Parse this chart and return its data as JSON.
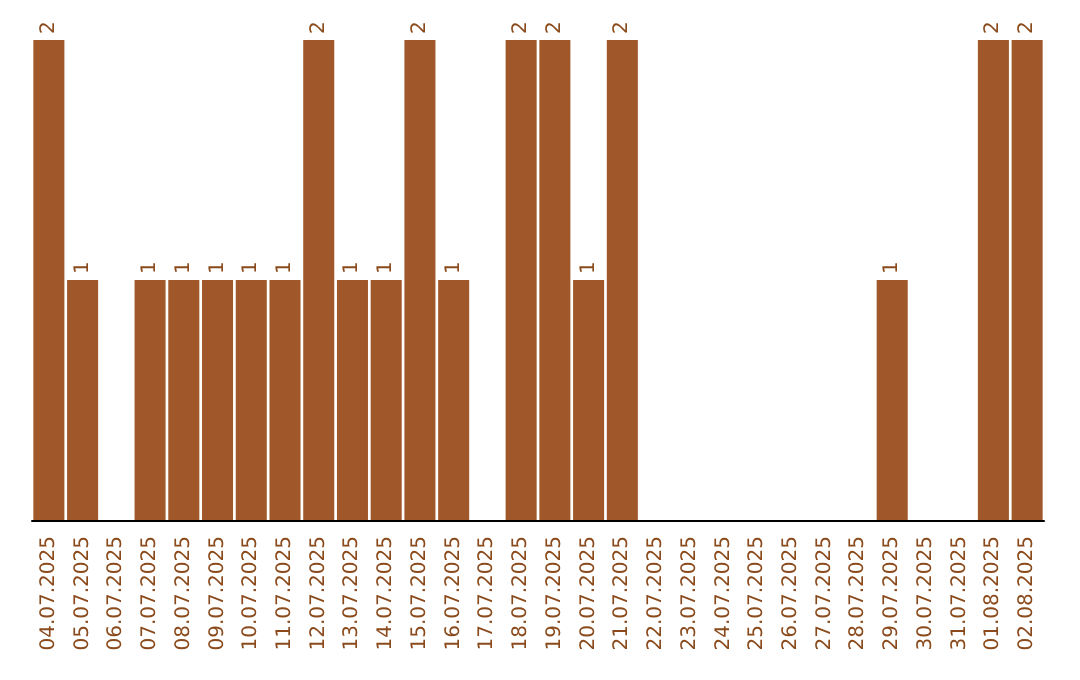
{
  "chart_data": {
    "type": "bar",
    "categories": [
      "04.07.2025",
      "05.07.2025",
      "06.07.2025",
      "07.07.2025",
      "08.07.2025",
      "09.07.2025",
      "10.07.2025",
      "11.07.2025",
      "12.07.2025",
      "13.07.2025",
      "14.07.2025",
      "15.07.2025",
      "16.07.2025",
      "17.07.2025",
      "18.07.2025",
      "19.07.2025",
      "20.07.2025",
      "21.07.2025",
      "22.07.2025",
      "23.07.2025",
      "24.07.2025",
      "25.07.2025",
      "26.07.2025",
      "27.07.2025",
      "28.07.2025",
      "29.07.2025",
      "30.07.2025",
      "31.07.2025",
      "01.08.2025",
      "02.08.2025"
    ],
    "values": [
      2,
      1,
      0,
      1,
      1,
      1,
      1,
      1,
      2,
      1,
      1,
      2,
      1,
      0,
      2,
      2,
      1,
      2,
      0,
      0,
      0,
      0,
      0,
      0,
      0,
      1,
      0,
      0,
      2,
      2
    ],
    "value_labels": [
      "2",
      "1",
      null,
      "1",
      "1",
      "1",
      "1",
      "1",
      "2",
      "1",
      "1",
      "2",
      "1",
      null,
      "2",
      "2",
      "1",
      "2",
      null,
      null,
      null,
      null,
      null,
      null,
      null,
      "1",
      null,
      null,
      "2",
      "2"
    ],
    "color": "#a0582a"
  }
}
